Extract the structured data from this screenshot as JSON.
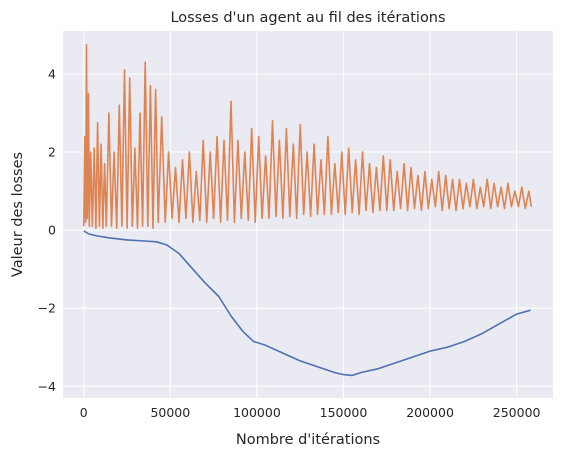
{
  "chart_data": {
    "type": "line",
    "title": "Losses d'un agent au fil des itérations",
    "xlabel": "Nombre d'itérations",
    "ylabel": "Valeur des losses",
    "xlim": [
      -12000,
      271000
    ],
    "ylim": [
      -4.3,
      5.1
    ],
    "xticks": [
      0,
      50000,
      100000,
      150000,
      200000,
      250000
    ],
    "xtick_labels": [
      "0",
      "50000",
      "100000",
      "150000",
      "200000",
      "250000"
    ],
    "yticks": [
      -4,
      -2,
      0,
      2,
      4
    ],
    "ytick_labels": [
      "−4",
      "−2",
      "0",
      "2",
      "4"
    ],
    "grid": true,
    "legend": "none",
    "background": "#eaeaf2",
    "series": [
      {
        "color": "#4c72b0",
        "x": [
          0,
          3000,
          8000,
          15000,
          25000,
          35000,
          42000,
          48000,
          55000,
          62000,
          70000,
          78000,
          85000,
          92000,
          98000,
          105000,
          115000,
          125000,
          135000,
          145000,
          150000,
          155000,
          160000,
          170000,
          180000,
          190000,
          200000,
          210000,
          220000,
          230000,
          240000,
          250000,
          258000
        ],
        "y": [
          -0.02,
          -0.1,
          -0.15,
          -0.2,
          -0.25,
          -0.28,
          -0.3,
          -0.38,
          -0.6,
          -0.95,
          -1.35,
          -1.7,
          -2.2,
          -2.6,
          -2.85,
          -2.95,
          -3.15,
          -3.35,
          -3.5,
          -3.65,
          -3.7,
          -3.72,
          -3.65,
          -3.55,
          -3.4,
          -3.25,
          -3.1,
          -3.0,
          -2.85,
          -2.65,
          -2.4,
          -2.15,
          -2.05
        ]
      },
      {
        "color": "#dd8452",
        "x": [
          0,
          600,
          1100,
          1600,
          2100,
          2700,
          3200,
          4000,
          5000,
          6000,
          7000,
          8000,
          9000,
          10000,
          11000,
          12000,
          13000,
          14500,
          16000,
          17500,
          19000,
          20500,
          22000,
          23500,
          25000,
          26500,
          28000,
          29500,
          31000,
          32500,
          34000,
          35500,
          37000,
          38500,
          40000,
          41500,
          43000,
          45000,
          47000,
          49000,
          51000,
          53000,
          55000,
          57000,
          59000,
          61000,
          63000,
          65000,
          67000,
          69000,
          71000,
          73000,
          75000,
          77000,
          79000,
          81000,
          83000,
          85000,
          87000,
          89000,
          91000,
          93000,
          95000,
          97000,
          99000,
          101000,
          103000,
          105000,
          107000,
          109000,
          111000,
          113000,
          115000,
          117000,
          119000,
          121000,
          123000,
          125000,
          127000,
          129000,
          131000,
          133000,
          135000,
          137000,
          139000,
          141000,
          143000,
          145000,
          147000,
          149000,
          151000,
          153000,
          155000,
          157000,
          159000,
          161000,
          163000,
          165000,
          167000,
          169000,
          171000,
          173000,
          175000,
          177000,
          179000,
          181000,
          183000,
          185000,
          187000,
          189000,
          191000,
          193000,
          195000,
          197000,
          199000,
          201000,
          203000,
          205000,
          207000,
          209000,
          211000,
          213000,
          215000,
          217000,
          219000,
          221000,
          223000,
          225000,
          227000,
          229000,
          231000,
          233000,
          235000,
          237000,
          239000,
          241000,
          243000,
          245000,
          247000,
          249000,
          251000,
          253000,
          255000,
          257000,
          258500
        ],
        "y": [
          0.1,
          2.4,
          0.2,
          4.75,
          0.3,
          3.5,
          0.1,
          2.0,
          0.1,
          2.1,
          0.05,
          2.75,
          0.1,
          2.2,
          0.05,
          1.7,
          0.1,
          3.0,
          0.1,
          2.0,
          0.05,
          3.2,
          0.1,
          4.1,
          0.05,
          3.9,
          0.1,
          2.1,
          0.05,
          3.0,
          0.1,
          4.3,
          0.1,
          3.7,
          0.05,
          3.6,
          0.2,
          2.9,
          0.2,
          2.0,
          0.3,
          1.6,
          0.2,
          1.8,
          0.3,
          2.0,
          0.2,
          1.5,
          0.25,
          2.3,
          0.2,
          2.0,
          0.3,
          2.4,
          0.2,
          2.3,
          0.25,
          3.3,
          0.2,
          2.3,
          0.3,
          2.0,
          0.25,
          2.6,
          0.2,
          2.4,
          0.3,
          1.9,
          0.3,
          2.8,
          0.35,
          2.3,
          0.3,
          2.6,
          0.35,
          2.2,
          0.3,
          2.7,
          0.4,
          2.0,
          0.35,
          2.2,
          0.4,
          1.8,
          0.4,
          2.4,
          0.4,
          1.7,
          0.45,
          2.0,
          0.4,
          2.1,
          0.45,
          1.8,
          0.4,
          2.0,
          0.5,
          1.7,
          0.45,
          1.6,
          0.5,
          1.9,
          0.5,
          1.8,
          0.5,
          1.5,
          0.55,
          1.7,
          0.5,
          1.6,
          0.55,
          1.4,
          0.5,
          1.5,
          0.55,
          1.3,
          0.6,
          1.5,
          0.5,
          1.4,
          0.55,
          1.3,
          0.5,
          1.3,
          0.55,
          1.2,
          0.6,
          1.3,
          0.55,
          1.1,
          0.6,
          1.3,
          0.55,
          1.2,
          0.6,
          1.1,
          0.55,
          1.2,
          0.6,
          1.0,
          0.6,
          1.1,
          0.55,
          1.0,
          0.6
        ]
      }
    ]
  }
}
